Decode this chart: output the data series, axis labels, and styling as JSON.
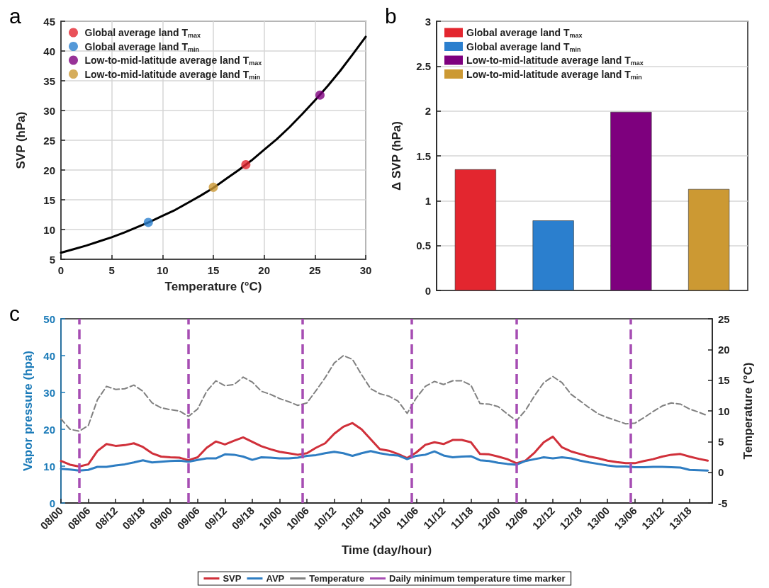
{
  "chart_data": [
    {
      "type": "scatter",
      "title": "a",
      "xlabel": "Temperature (°C)",
      "ylabel": "SVP (hPa)",
      "xlim": [
        0,
        30
      ],
      "xticks": [
        0,
        5,
        10,
        15,
        20,
        25,
        30
      ],
      "ylim": [
        5,
        45
      ],
      "yticks": [
        5,
        10,
        15,
        20,
        25,
        30,
        35,
        40,
        45
      ],
      "grid": true,
      "legend": "top left",
      "marker": "circle",
      "series": [
        {
          "type": "line",
          "color": "#000000",
          "marker": "none",
          "x": [
            0,
            1.25,
            2.5,
            3.75,
            5,
            6.25,
            7.5,
            8.75,
            10,
            11.25,
            12.5,
            13.75,
            15,
            16.25,
            17.5,
            18.75,
            20,
            21.25,
            22.5,
            23.75,
            25,
            26.25,
            27.5,
            28.75,
            30
          ],
          "values": [
            6.1,
            6.7,
            7.3,
            8.0,
            8.7,
            9.5,
            10.4,
            11.3,
            12.3,
            13.3,
            14.5,
            15.7,
            17.0,
            18.5,
            20.0,
            21.6,
            23.4,
            25.2,
            27.2,
            29.4,
            31.7,
            34.1,
            36.7,
            39.5,
            42.4
          ]
        },
        {
          "name": "Global average land T$_{max}$",
          "color": "#e3262f",
          "x": [
            18.2
          ],
          "values": [
            20.9
          ]
        },
        {
          "name": "Global average land T$_{min}$",
          "color": "#2b7fce",
          "x": [
            8.6
          ],
          "values": [
            11.2
          ]
        },
        {
          "name": "Low-to-mid-latitude average land T$_{max}$",
          "color": "#7e007e",
          "x": [
            25.5
          ],
          "values": [
            32.6
          ]
        },
        {
          "name": "Low-to-mid-latitude average land T$_{min}$",
          "color": "#cc9933",
          "x": [
            15.0
          ],
          "values": [
            17.1
          ]
        }
      ]
    },
    {
      "type": "bar",
      "title": "b",
      "ylabel": "Δ SVP (hPa)",
      "categories": [
        null,
        null,
        null,
        null
      ],
      "ylim": [
        0,
        3
      ],
      "yticks": [
        0,
        0.5,
        1,
        1.5,
        2,
        2.5,
        3
      ],
      "grid": "y",
      "legend": "top left",
      "series": [
        {
          "name": "Global average land T$_{max}$",
          "color": "#e3262f",
          "values": [
            1.35,
            null,
            null,
            null
          ]
        },
        {
          "name": "Global average land T$_{min}$",
          "color": "#2b7fce",
          "values": [
            null,
            0.78,
            null,
            null
          ]
        },
        {
          "name": "Low-to-mid-latitude average land T$_{max}$",
          "color": "#7e007e",
          "values": [
            null,
            null,
            1.99,
            null
          ]
        },
        {
          "name": "Low-to-mid-latitude average land T$_{min}$",
          "color": "#cc9933",
          "values": [
            null,
            null,
            null,
            1.13
          ]
        }
      ]
    },
    {
      "type": "line",
      "title": "c",
      "xlabel": "Time (day/hour)",
      "ylabel": "Vapor pressure (hpa)",
      "y2label": "Temperature (°C)",
      "grid": false,
      "legend": "bottom",
      "marker": "none",
      "xlim": [
        "--01-08T00:00",
        "--01-13T23:00"
      ],
      "xticks": [
        {
          "value": "--01-08T00:00",
          "label": "08/00"
        },
        {
          "value": "--01-08T06:00",
          "label": "08/06"
        },
        {
          "value": "--01-08T12:00",
          "label": "08/12"
        },
        {
          "value": "--01-08T18:00",
          "label": "08/18"
        },
        {
          "value": "--01-09T00:00",
          "label": "09/00"
        },
        {
          "value": "--01-09T06:00",
          "label": "09/06"
        },
        {
          "value": "--01-09T12:00",
          "label": "09/12"
        },
        {
          "value": "--01-09T18:00",
          "label": "09/18"
        },
        {
          "value": "--01-10T00:00",
          "label": "10/00"
        },
        {
          "value": "--01-10T06:00",
          "label": "10/06"
        },
        {
          "value": "--01-10T12:00",
          "label": "10/12"
        },
        {
          "value": "--01-10T18:00",
          "label": "10/18"
        },
        {
          "value": "--01-11T00:00",
          "label": "11/00"
        },
        {
          "value": "--01-11T06:00",
          "label": "11/06"
        },
        {
          "value": "--01-11T12:00",
          "label": "11/12"
        },
        {
          "value": "--01-11T18:00",
          "label": "11/18"
        },
        {
          "value": "--01-12T00:00",
          "label": "12/00"
        },
        {
          "value": "--01-12T06:00",
          "label": "12/06"
        },
        {
          "value": "--01-12T12:00",
          "label": "12/12"
        },
        {
          "value": "--01-12T18:00",
          "label": "12/18"
        },
        {
          "value": "--01-13T00:00",
          "label": "13/00"
        },
        {
          "value": "--01-13T06:00",
          "label": "13/06"
        },
        {
          "value": "--01-13T12:00",
          "label": "13/12"
        },
        {
          "value": "--01-13T18:00",
          "label": "13/18"
        }
      ],
      "ylim": [
        0,
        50
      ],
      "yticks": [
        0,
        10,
        20,
        30,
        40,
        50
      ],
      "y2lim": [
        -5,
        25
      ],
      "y2ticks": [
        -5,
        0,
        5,
        10,
        15,
        20,
        25
      ],
      "x": [
        "--01-08T00:00",
        "--01-08T02:00",
        "--01-08T04:00",
        "--01-08T06:00",
        "--01-08T08:00",
        "--01-08T10:00",
        "--01-08T12:00",
        "--01-08T14:00",
        "--01-08T16:00",
        "--01-08T18:00",
        "--01-08T20:00",
        "--01-08T22:00",
        "--01-09T00:00",
        "--01-09T02:00",
        "--01-09T04:00",
        "--01-09T06:00",
        "--01-09T08:00",
        "--01-09T10:00",
        "--01-09T12:00",
        "--01-09T14:00",
        "--01-09T16:00",
        "--01-09T18:00",
        "--01-09T20:00",
        "--01-09T22:00",
        "--01-10T00:00",
        "--01-10T02:00",
        "--01-10T04:00",
        "--01-10T06:00",
        "--01-10T08:00",
        "--01-10T10:00",
        "--01-10T12:00",
        "--01-10T14:00",
        "--01-10T16:00",
        "--01-10T18:00",
        "--01-10T20:00",
        "--01-10T22:00",
        "--01-11T00:00",
        "--01-11T02:00",
        "--01-11T04:00",
        "--01-11T06:00",
        "--01-11T08:00",
        "--01-11T10:00",
        "--01-11T12:00",
        "--01-11T14:00",
        "--01-11T16:00",
        "--01-11T18:00",
        "--01-11T20:00",
        "--01-11T22:00",
        "--01-12T00:00",
        "--01-12T02:00",
        "--01-12T04:00",
        "--01-12T06:00",
        "--01-12T08:00",
        "--01-12T10:00",
        "--01-12T12:00",
        "--01-12T14:00",
        "--01-12T16:00",
        "--01-12T18:00",
        "--01-12T20:00",
        "--01-12T22:00",
        "--01-13T00:00",
        "--01-13T02:00",
        "--01-13T04:00",
        "--01-13T06:00",
        "--01-13T08:00",
        "--01-13T10:00",
        "--01-13T12:00",
        "--01-13T14:00",
        "--01-13T16:00",
        "--01-13T18:00",
        "--01-13T20:00",
        "--01-13T22:00"
      ],
      "series": [
        {
          "name": "SVP",
          "color": "#d0303a",
          "line_style": "solid",
          "values": [
            11.4,
            10.4,
            9.9,
            10.5,
            14.1,
            16.0,
            15.5,
            15.7,
            16.2,
            15.2,
            13.5,
            12.6,
            12.4,
            12.3,
            11.6,
            12.4,
            15.0,
            16.7,
            15.9,
            16.9,
            17.8,
            16.6,
            15.4,
            14.6,
            13.9,
            13.5,
            13.1,
            13.5,
            15.0,
            16.2,
            18.8,
            20.7,
            21.7,
            20.0,
            17.3,
            14.6,
            14.2,
            13.3,
            12.2,
            13.7,
            15.8,
            16.5,
            16.0,
            17.1,
            17.1,
            16.5,
            13.3,
            13.2,
            12.6,
            11.9,
            10.8,
            11.5,
            13.7,
            16.5,
            18.0,
            15.1,
            14.0,
            13.3,
            12.6,
            12.1,
            11.5,
            11.1,
            10.8,
            10.8,
            11.4,
            11.9,
            12.6,
            13.1,
            13.3,
            12.6,
            12.0,
            11.5
          ]
        },
        {
          "name": "AVP",
          "color": "#2e7dc2",
          "line_style": "solid",
          "values": [
            9.3,
            9.1,
            8.8,
            9.0,
            9.8,
            9.8,
            10.2,
            10.5,
            11.0,
            11.6,
            11.0,
            11.2,
            11.4,
            11.5,
            11.2,
            11.7,
            12.1,
            12.1,
            13.2,
            13.1,
            12.6,
            11.7,
            12.4,
            12.3,
            12.1,
            12.1,
            12.3,
            12.8,
            13.0,
            13.5,
            13.9,
            13.5,
            12.8,
            13.5,
            14.1,
            13.5,
            13.1,
            12.9,
            11.9,
            12.8,
            13.1,
            14.0,
            12.9,
            12.4,
            12.6,
            12.7,
            11.6,
            11.4,
            10.9,
            10.6,
            10.4,
            11.4,
            11.9,
            12.4,
            12.1,
            12.4,
            12.1,
            11.5,
            11.0,
            10.6,
            10.2,
            9.9,
            9.9,
            9.7,
            9.7,
            9.8,
            9.8,
            9.7,
            9.6,
            9.0,
            8.9,
            8.8
          ]
        },
        {
          "name": "Temperature",
          "color": "#808080",
          "line_style": "dashed",
          "axis": "y2",
          "values": [
            8.7,
            7.0,
            6.7,
            7.6,
            11.8,
            14.0,
            13.5,
            13.6,
            14.2,
            13.2,
            11.3,
            10.5,
            10.2,
            10.0,
            9.1,
            10.3,
            13.2,
            14.9,
            14.1,
            14.3,
            15.5,
            14.7,
            13.2,
            12.7,
            12.0,
            11.5,
            10.9,
            11.3,
            13.3,
            15.4,
            17.8,
            19.0,
            18.4,
            15.9,
            13.6,
            12.8,
            12.4,
            11.6,
            9.6,
            12.1,
            14.0,
            14.8,
            14.3,
            14.9,
            14.9,
            14.2,
            11.2,
            11.1,
            10.7,
            9.5,
            8.4,
            10.1,
            12.5,
            14.6,
            15.6,
            14.6,
            12.7,
            11.6,
            10.5,
            9.5,
            8.9,
            8.4,
            7.9,
            8.0,
            8.9,
            9.9,
            10.8,
            11.3,
            11.1,
            10.3,
            9.8,
            9.2
          ]
        }
      ],
      "ref_lines": [
        {
          "axis": "x",
          "value": "--01-08T04:00",
          "label": "Daily minimum temperature time marker",
          "color": "#a64db3",
          "line_style": "dashed"
        },
        {
          "axis": "x",
          "value": "--01-09T04:00",
          "color": "#a64db3",
          "line_style": "dashed"
        },
        {
          "axis": "x",
          "value": "--01-10T05:00",
          "color": "#a64db3",
          "line_style": "dashed"
        },
        {
          "axis": "x",
          "value": "--01-11T05:00",
          "color": "#a64db3",
          "line_style": "dashed"
        },
        {
          "axis": "x",
          "value": "--01-12T04:00",
          "color": "#a64db3",
          "line_style": "dashed"
        },
        {
          "axis": "x",
          "value": "--01-13T05:00",
          "color": "#a64db3",
          "line_style": "dashed"
        }
      ]
    }
  ]
}
